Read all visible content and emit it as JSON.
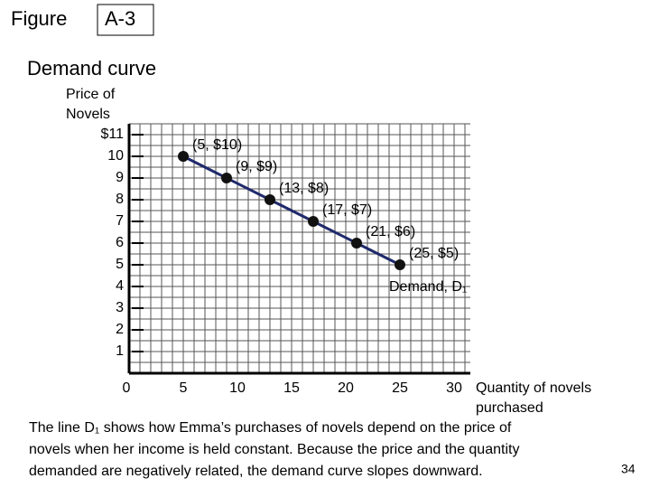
{
  "figure_label": "Figure",
  "figure_number": "A-3",
  "chart_data": {
    "type": "line",
    "title": "Demand curve",
    "y_label": [
      "Price of",
      "Novels"
    ],
    "x_label": [
      "Quantity of novels",
      "purchased"
    ],
    "x": [
      5,
      9,
      13,
      17,
      21,
      25
    ],
    "series": [
      {
        "name": "Demand, D₁",
        "color": "#1f2a6b",
        "values": [
          10,
          9,
          8,
          7,
          6,
          5
        ],
        "value_labels": [
          "(5, $10)",
          "(9, $9)",
          "(13, $8)",
          "(17, $7)",
          "(21, $6)",
          "(25, $5)"
        ]
      }
    ],
    "xlim": [
      0,
      31.5
    ],
    "ylim": [
      0,
      11.5
    ],
    "xticks": [
      0,
      5,
      10,
      15,
      20,
      25,
      30
    ],
    "yticks": [
      1,
      2,
      3,
      4,
      5,
      6,
      7,
      8,
      9,
      10,
      {
        "value": 11,
        "label": "$11"
      }
    ],
    "grid": true
  },
  "caption": [
    "The line D₁ shows how Emma’s purchases of novels depend on the price of",
    "novels when her income is held constant. Because the price and the quantity",
    "demanded are negatively related, the demand curve slopes downward."
  ],
  "page_number": "34"
}
